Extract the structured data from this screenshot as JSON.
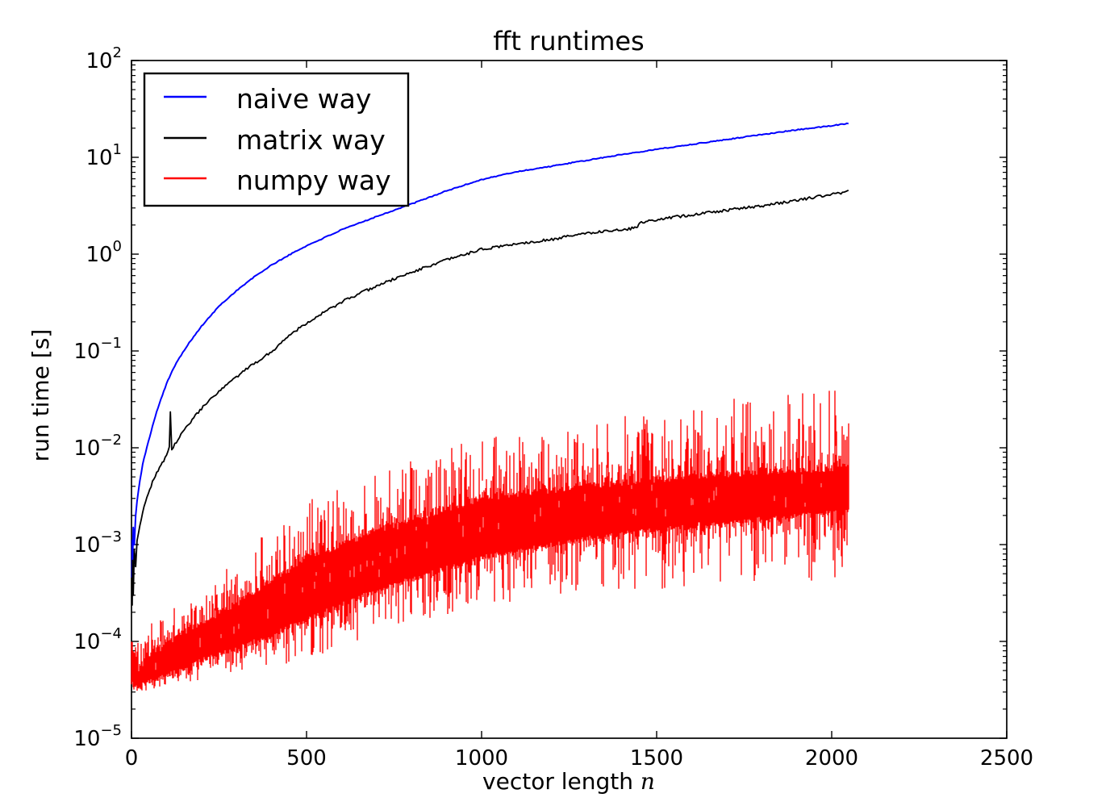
{
  "figure": {
    "background": "#ffffff",
    "frame_color": "#000000",
    "xlabel_text": "vector length ",
    "xlabel_var": "n"
  },
  "chart_data": {
    "type": "line",
    "title": "fft runtimes",
    "xlabel": "vector length n",
    "ylabel": "run time [s]",
    "xscale": "linear",
    "yscale": "log",
    "xlim": [
      0,
      2500
    ],
    "ylim": [
      1e-05,
      100
    ],
    "xticks": [
      0,
      500,
      1000,
      1500,
      2000,
      2500
    ],
    "ytick_exponents": [
      2,
      1,
      0,
      -1,
      -2,
      -3,
      -4,
      -5
    ],
    "grid": false,
    "legend_position": "upper left",
    "series": [
      {
        "name": "naive way",
        "color": "#0000ff",
        "style": "line",
        "jitter_log10": 0.005,
        "points": [
          [
            1,
            0.00046
          ],
          [
            2,
            0.0011
          ],
          [
            3,
            0.0006
          ],
          [
            5,
            0.0015
          ],
          [
            8,
            0.001
          ],
          [
            12,
            0.002
          ],
          [
            16,
            0.0028
          ],
          [
            24,
            0.0046
          ],
          [
            32,
            0.0068
          ],
          [
            48,
            0.0115
          ],
          [
            64,
            0.019
          ],
          [
            80,
            0.029
          ],
          [
            100,
            0.046
          ],
          [
            128,
            0.076
          ],
          [
            160,
            0.115
          ],
          [
            200,
            0.18
          ],
          [
            250,
            0.29
          ],
          [
            300,
            0.42
          ],
          [
            350,
            0.58
          ],
          [
            400,
            0.77
          ],
          [
            450,
            0.98
          ],
          [
            500,
            1.22
          ],
          [
            600,
            1.78
          ],
          [
            700,
            2.45
          ],
          [
            800,
            3.3
          ],
          [
            900,
            4.5
          ],
          [
            1000,
            5.9
          ],
          [
            1100,
            7.1
          ],
          [
            1200,
            8.1
          ],
          [
            1300,
            9.3
          ],
          [
            1400,
            10.7
          ],
          [
            1500,
            12.1
          ],
          [
            1600,
            13.6
          ],
          [
            1700,
            15.3
          ],
          [
            1800,
            17.2
          ],
          [
            1900,
            19.2
          ],
          [
            2000,
            21.2
          ],
          [
            2048,
            22.5
          ]
        ]
      },
      {
        "name": "matrix way",
        "color": "#000000",
        "style": "line",
        "jitter_log10": 0.014,
        "points": [
          [
            1,
            0.0003
          ],
          [
            2,
            0.00023
          ],
          [
            3,
            0.0007
          ],
          [
            5,
            0.0003
          ],
          [
            8,
            0.0009
          ],
          [
            12,
            0.0006
          ],
          [
            16,
            0.0011
          ],
          [
            24,
            0.0016
          ],
          [
            32,
            0.0022
          ],
          [
            48,
            0.0034
          ],
          [
            64,
            0.0048
          ],
          [
            80,
            0.0063
          ],
          [
            100,
            0.0082
          ],
          [
            108,
            0.01
          ],
          [
            111,
            0.024
          ],
          [
            115,
            0.0095
          ],
          [
            128,
            0.0115
          ],
          [
            160,
            0.017
          ],
          [
            200,
            0.0255
          ],
          [
            250,
            0.038
          ],
          [
            300,
            0.054
          ],
          [
            350,
            0.074
          ],
          [
            400,
            0.098
          ],
          [
            450,
            0.145
          ],
          [
            500,
            0.195
          ],
          [
            600,
            0.32
          ],
          [
            700,
            0.47
          ],
          [
            800,
            0.65
          ],
          [
            900,
            0.87
          ],
          [
            1000,
            1.12
          ],
          [
            1100,
            1.28
          ],
          [
            1200,
            1.42
          ],
          [
            1300,
            1.65
          ],
          [
            1400,
            1.8
          ],
          [
            1442,
            1.86
          ],
          [
            1452,
            2.1
          ],
          [
            1500,
            2.27
          ],
          [
            1600,
            2.55
          ],
          [
            1700,
            2.85
          ],
          [
            1800,
            3.15
          ],
          [
            1900,
            3.6
          ],
          [
            2000,
            4.15
          ],
          [
            2048,
            4.45
          ]
        ]
      },
      {
        "name": "numpy way",
        "color": "#ff0000",
        "style": "noisy-band",
        "n_range": [
          1,
          2048
        ],
        "envelope_columns": [
          "n",
          "low_extreme",
          "low_typical",
          "high_typical",
          "high_extreme"
        ],
        "envelope": [
          [
            1,
            3.3e-05,
            3.6e-05,
            0.0001,
            0.00014
          ],
          [
            20,
            2.8e-05,
            3.2e-05,
            5.5e-05,
            0.0001
          ],
          [
            60,
            3.2e-05,
            3.8e-05,
            8e-05,
            0.00016
          ],
          [
            120,
            3.6e-05,
            4.5e-05,
            0.00011,
            0.00022
          ],
          [
            200,
            4e-05,
            6e-05,
            0.00017,
            0.00032
          ],
          [
            300,
            5e-05,
            8e-05,
            0.00026,
            0.0007
          ],
          [
            400,
            5.5e-05,
            0.00011,
            0.00045,
            0.0015
          ],
          [
            500,
            6.5e-05,
            0.00016,
            0.00075,
            0.0028
          ],
          [
            700,
            0.00012,
            0.00032,
            0.0015,
            0.006
          ],
          [
            1000,
            0.00024,
            0.0007,
            0.0032,
            0.013
          ],
          [
            1300,
            0.0003,
            0.0011,
            0.0043,
            0.02
          ],
          [
            1600,
            0.00035,
            0.0015,
            0.0054,
            0.03
          ],
          [
            1850,
            0.0004,
            0.0018,
            0.0061,
            0.037
          ],
          [
            2048,
            0.00045,
            0.0021,
            0.0066,
            0.044
          ]
        ]
      }
    ]
  }
}
